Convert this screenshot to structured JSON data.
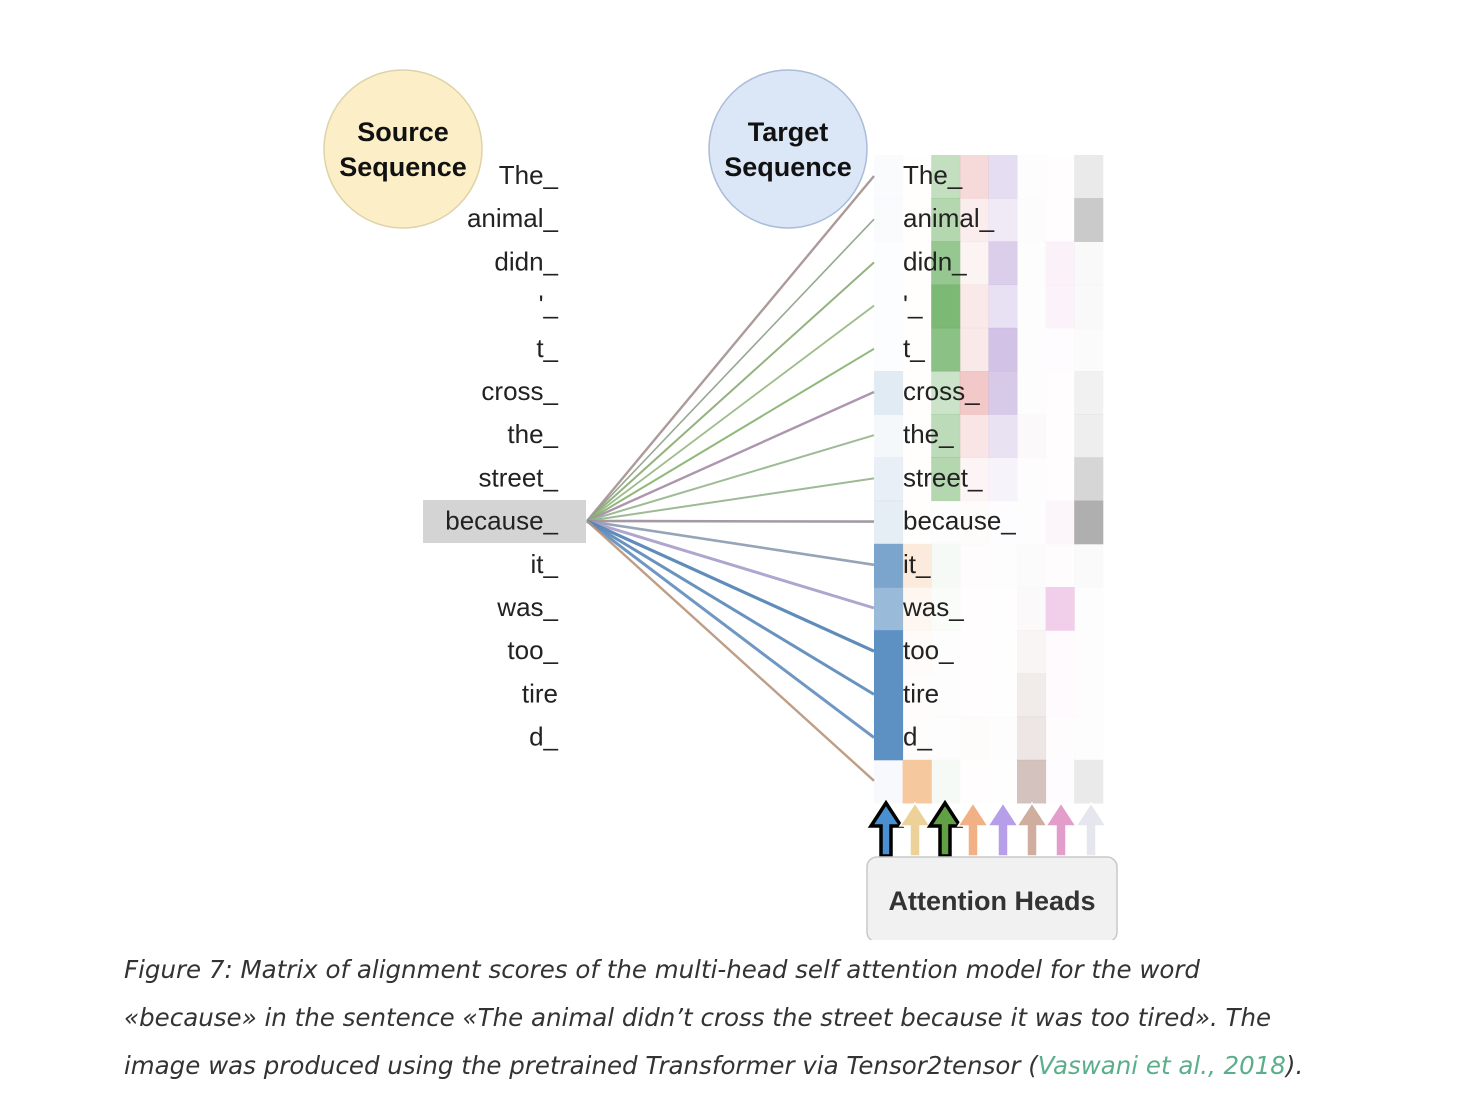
{
  "diagram": {
    "source_label": [
      "Source",
      "Sequence"
    ],
    "target_label": [
      "Target",
      "Sequence"
    ],
    "heads_label": "Attention Heads",
    "tokens": [
      "The_",
      "animal_",
      "didn_",
      "'_",
      "t_",
      "cross_",
      "the_",
      "street_",
      "because_",
      "it_",
      "was_",
      "too_",
      "tire",
      "d_"
    ],
    "selected_source_index": 8,
    "colors": {
      "source_circle": "#fcefc7",
      "target_circle": "#dbe6f6",
      "selected_highlight": "#d4d4d4",
      "heads": [
        "#4a8fd0",
        "#ecd299",
        "#62a045",
        "#f2b185",
        "#b79ee9",
        "#cfaea0",
        "#e39dca",
        "#e6e6ef"
      ]
    },
    "heatmap_colors": [
      "#5b8fc2",
      "#f4be8c",
      "#6aaf62",
      "#e89a9a",
      "#c6b3e0",
      "#b89a94",
      "#e6a8d8",
      "#9e9e9e"
    ]
  },
  "caption": {
    "text": "Figure 7: Matrix of alignment scores of the multi-head self attention model for the word «because» in the sentence «The animal didn’t cross the street because it was too tired». The image was produced using the pretrained Transformer via Tensor2tensor (",
    "link": "Vaswani et al., 2018",
    "end": ")."
  }
}
